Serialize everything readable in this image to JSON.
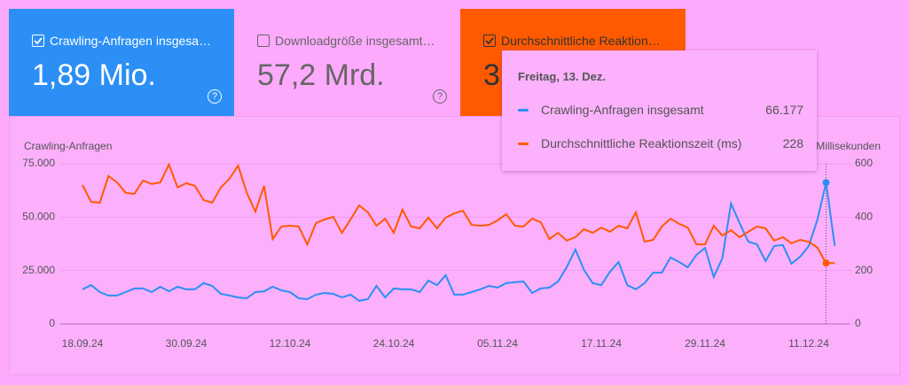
{
  "cards": [
    {
      "label": "Crawling-Anfragen insgesa…",
      "value": "1,89 Mio.",
      "checked": true,
      "color": "#2b8ff5"
    },
    {
      "label": "Downloadgröße insgesamt…",
      "value": "57,2 Mrd.",
      "checked": false,
      "color": "#fdaafd"
    },
    {
      "label": "Durchschnittliche Reaktion…",
      "value": "3",
      "checked": true,
      "color": "#ff5a00"
    }
  ],
  "tooltip": {
    "date": "Freitag, 13. Dez.",
    "values": [
      "66.177",
      "228"
    ]
  },
  "chart_data": {
    "type": "line",
    "y_label": "Crawling-Anfragen",
    "y2_label": "Millisekunden",
    "categories": [
      "18.09.24",
      null,
      null,
      null,
      null,
      null,
      null,
      null,
      null,
      null,
      null,
      null,
      "30.09.24",
      null,
      null,
      null,
      null,
      null,
      null,
      null,
      null,
      null,
      null,
      null,
      "12.10.24",
      null,
      null,
      null,
      null,
      null,
      null,
      null,
      null,
      null,
      null,
      null,
      "24.10.24",
      null,
      null,
      null,
      null,
      null,
      null,
      null,
      null,
      null,
      null,
      null,
      "05.11.24",
      null,
      null,
      null,
      null,
      null,
      null,
      null,
      null,
      null,
      null,
      null,
      "17.11.24",
      null,
      null,
      null,
      null,
      null,
      null,
      null,
      null,
      null,
      null,
      null,
      "29.11.24",
      null,
      null,
      null,
      null,
      null,
      null,
      null,
      null,
      null,
      null,
      null,
      "11.12.24",
      null,
      null,
      null
    ],
    "ylim": [
      0,
      75000
    ],
    "yticks": [
      0,
      {
        "value": 25000,
        "label": "25.000"
      },
      {
        "value": 50000,
        "label": "50.000"
      },
      {
        "value": 75000,
        "label": "75.000"
      }
    ],
    "y2lim": [
      0,
      600
    ],
    "y2ticks": [
      0,
      200,
      400,
      600
    ],
    "grid": true,
    "series": [
      {
        "name": "Crawling-Anfragen insgesamt",
        "color": "#2b8ff5",
        "values": [
          16200,
          18200,
          14900,
          13300,
          13300,
          14900,
          16600,
          16600,
          14900,
          17400,
          15300,
          17400,
          16200,
          16200,
          19100,
          17800,
          14100,
          13300,
          12400,
          12000,
          14900,
          15300,
          17400,
          15700,
          14900,
          12000,
          11600,
          13700,
          14500,
          14100,
          12400,
          13700,
          10800,
          11600,
          17800,
          12400,
          16600,
          16200,
          16200,
          14900,
          20300,
          18200,
          22800,
          13700,
          13700,
          14900,
          16200,
          17800,
          17000,
          19100,
          19500,
          19900,
          14500,
          16600,
          17000,
          19900,
          26500,
          34800,
          25300,
          19100,
          18200,
          24400,
          29000,
          18200,
          16200,
          19100,
          24000,
          24000,
          31100,
          29000,
          26500,
          32300,
          35600,
          22000,
          30700,
          56400,
          47200,
          38500,
          37300,
          29400,
          36500,
          36900,
          28200,
          31500,
          36500,
          48900,
          66177,
          36500
        ]
      },
      {
        "name": "Durchschnittliche Reaktionszeit (ms)",
        "color": "#ff5a00",
        "axis": "y2",
        "values": [
          520,
          457,
          454,
          554,
          530,
          491,
          487,
          537,
          524,
          530,
          597,
          511,
          527,
          517,
          464,
          454,
          511,
          544,
          593,
          491,
          421,
          517,
          318,
          365,
          368,
          365,
          298,
          378,
          391,
          401,
          341,
          391,
          444,
          418,
          368,
          394,
          341,
          428,
          365,
          358,
          398,
          358,
          398,
          414,
          424,
          371,
          368,
          371,
          388,
          411,
          368,
          365,
          394,
          381,
          318,
          341,
          312,
          325,
          355,
          341,
          361,
          345,
          368,
          358,
          418,
          308,
          315,
          365,
          394,
          375,
          361,
          298,
          298,
          368,
          331,
          351,
          325,
          345,
          365,
          358,
          312,
          325,
          302,
          315,
          308,
          285,
          228,
          228
        ]
      }
    ]
  }
}
